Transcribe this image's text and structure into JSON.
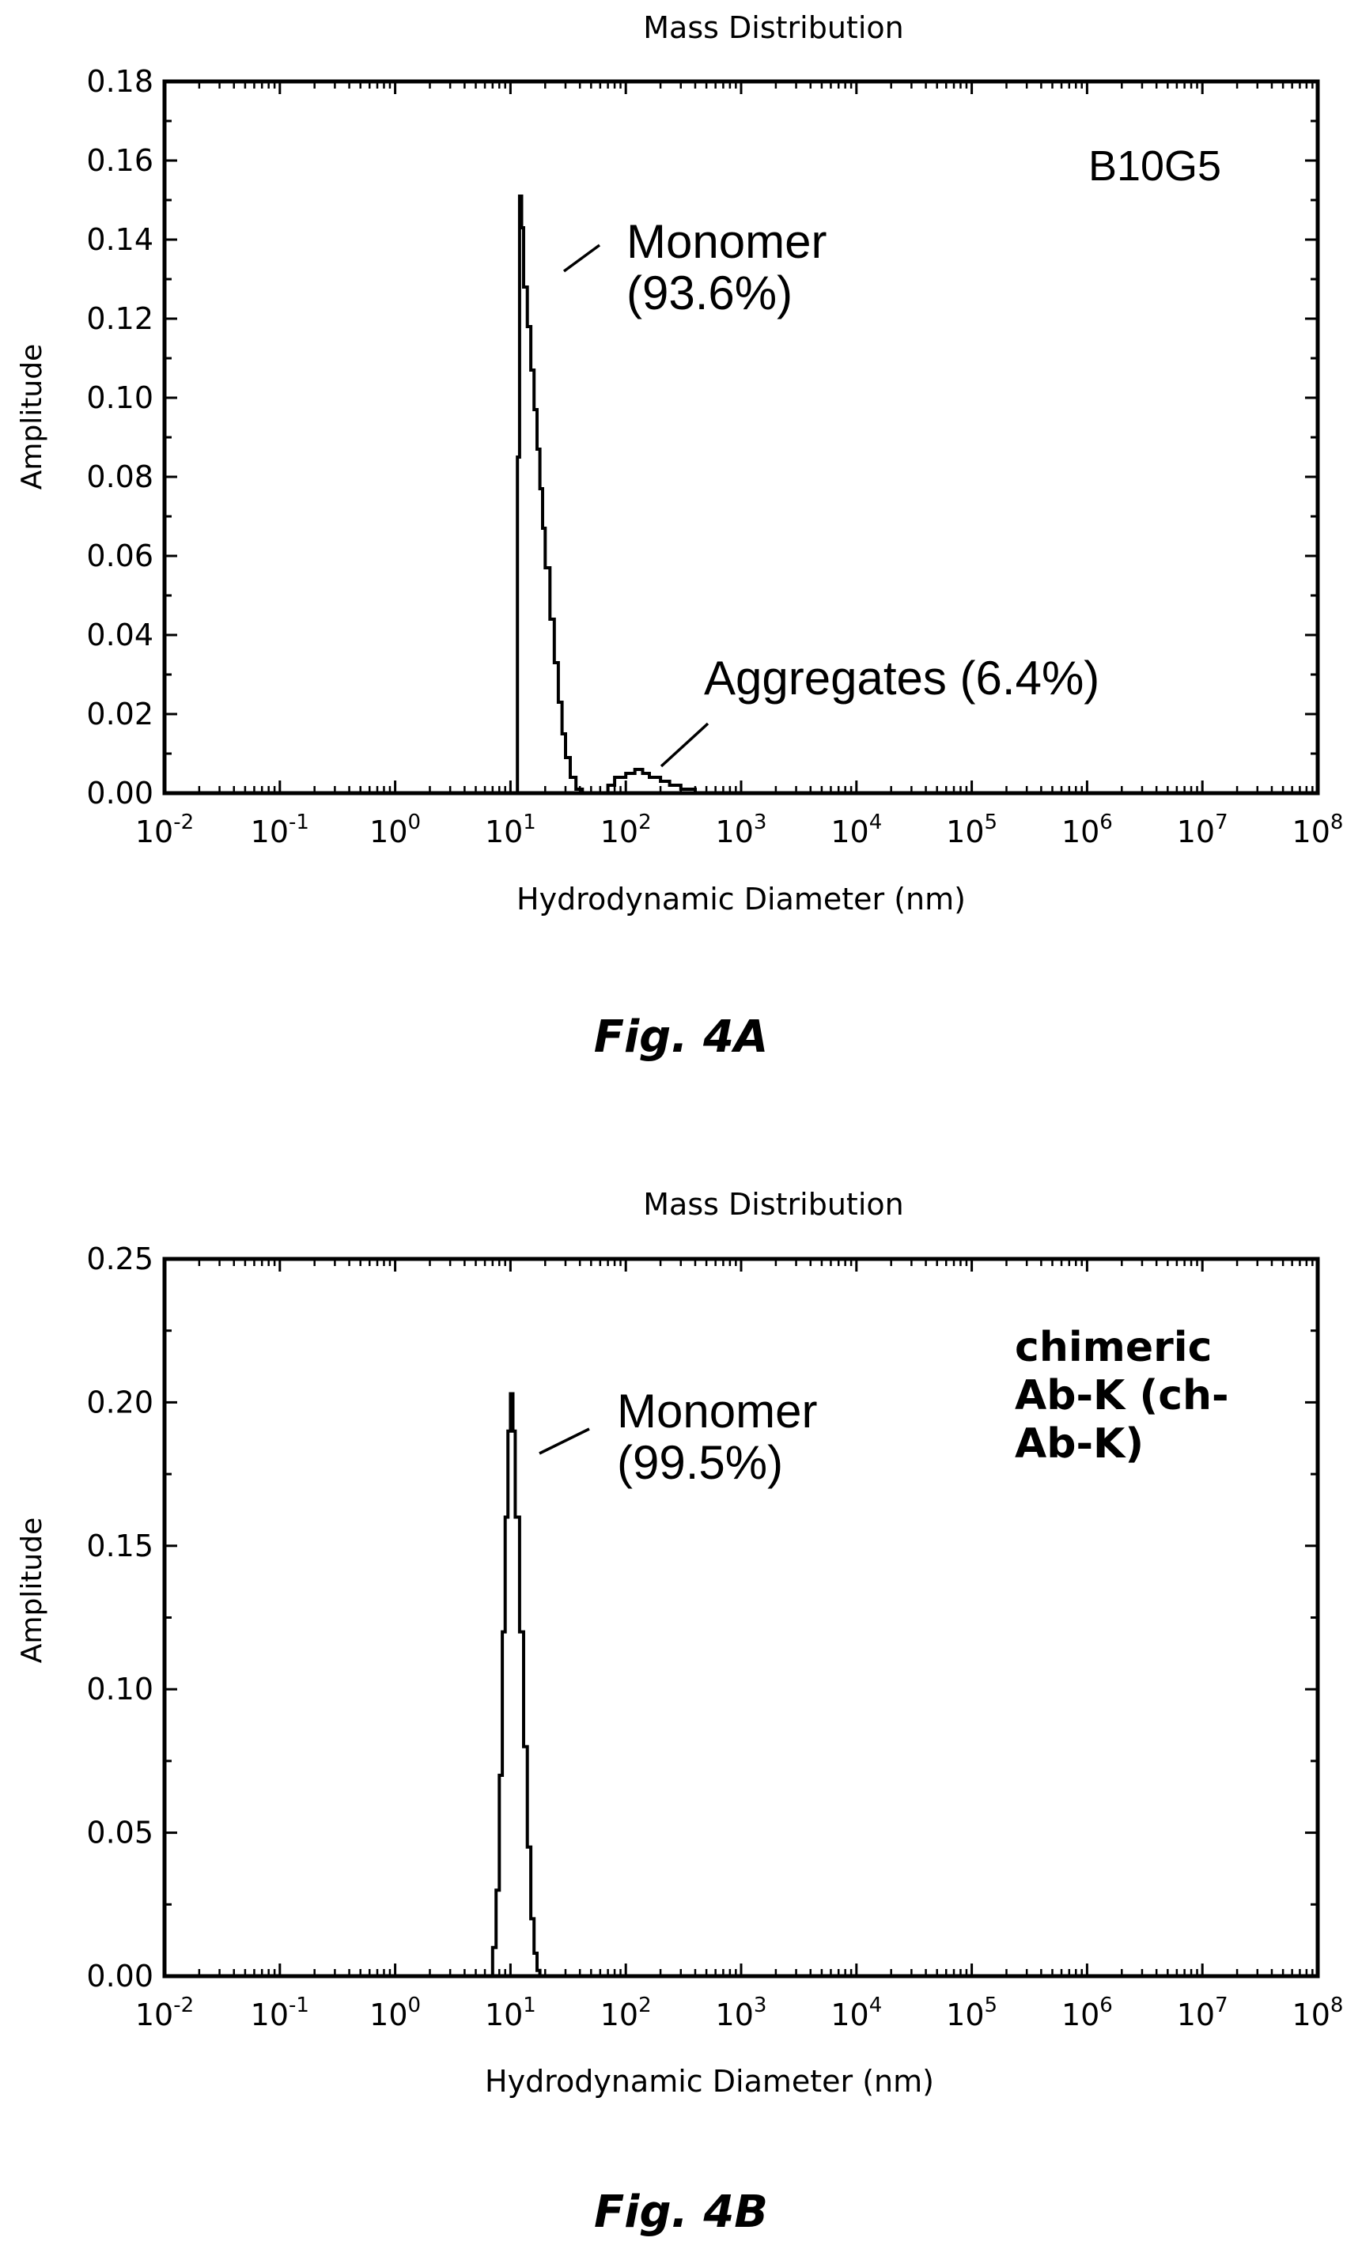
{
  "chart_data": [
    {
      "type": "line",
      "title": "Mass Distribution",
      "xlabel": "Hydrodynamic Diameter (nm)",
      "ylabel": "Amplitude",
      "x_scale": "log",
      "xlim": [
        0.01,
        100000000
      ],
      "ylim": [
        0,
        0.18
      ],
      "x_ticks": [
        {
          "base": "10",
          "exp": "-2"
        },
        {
          "base": "10",
          "exp": "-1"
        },
        {
          "base": "10",
          "exp": "0"
        },
        {
          "base": "10",
          "exp": "1"
        },
        {
          "base": "10",
          "exp": "2"
        },
        {
          "base": "10",
          "exp": "3"
        },
        {
          "base": "10",
          "exp": "4"
        },
        {
          "base": "10",
          "exp": "5"
        },
        {
          "base": "10",
          "exp": "6"
        },
        {
          "base": "10",
          "exp": "7"
        },
        {
          "base": "10",
          "exp": "8"
        }
      ],
      "y_ticks": [
        "0.00",
        "0.02",
        "0.04",
        "0.06",
        "0.08",
        "0.10",
        "0.12",
        "0.14",
        "0.16",
        "0.18"
      ],
      "y_tick_values": [
        0,
        0.02,
        0.04,
        0.06,
        0.08,
        0.1,
        0.12,
        0.14,
        0.16,
        0.18
      ],
      "sample_label": [
        "B10G5"
      ],
      "annotations": [
        {
          "lines": [
            "Monomer",
            "(93.6%)"
          ]
        },
        {
          "lines": [
            "Aggregates (6.4%)"
          ]
        }
      ],
      "series": [
        {
          "x": [
            0.01,
            11,
            11.5,
            12,
            12.5,
            13,
            14,
            15,
            16,
            17,
            18,
            19,
            20,
            22,
            24,
            26,
            28,
            30,
            33,
            37,
            42,
            50,
            60,
            70,
            80,
            100,
            120,
            140,
            160,
            200,
            240,
            300,
            400,
            100000000
          ],
          "y": [
            0,
            0,
            0.085,
            0.151,
            0.143,
            0.128,
            0.118,
            0.107,
            0.097,
            0.087,
            0.077,
            0.067,
            0.057,
            0.044,
            0.033,
            0.023,
            0.015,
            0.009,
            0.004,
            0.001,
            0,
            0,
            0,
            0.002,
            0.004,
            0.005,
            0.006,
            0.005,
            0.004,
            0.003,
            0.002,
            0.001,
            0,
            0
          ]
        }
      ]
    },
    {
      "type": "line",
      "title": "Mass Distribution",
      "xlabel": "Hydrodynamic Diameter (nm)",
      "ylabel": "Amplitude",
      "x_scale": "log",
      "xlim": [
        0.01,
        100000000
      ],
      "ylim": [
        0,
        0.25
      ],
      "x_ticks": [
        {
          "base": "10",
          "exp": "-2"
        },
        {
          "base": "10",
          "exp": "-1"
        },
        {
          "base": "10",
          "exp": "0"
        },
        {
          "base": "10",
          "exp": "1"
        },
        {
          "base": "10",
          "exp": "2"
        },
        {
          "base": "10",
          "exp": "3"
        },
        {
          "base": "10",
          "exp": "4"
        },
        {
          "base": "10",
          "exp": "5"
        },
        {
          "base": "10",
          "exp": "6"
        },
        {
          "base": "10",
          "exp": "7"
        },
        {
          "base": "10",
          "exp": "8"
        }
      ],
      "y_ticks": [
        "0.00",
        "0.05",
        "0.10",
        "0.15",
        "0.20",
        "0.25"
      ],
      "y_tick_values": [
        0,
        0.05,
        0.1,
        0.15,
        0.2,
        0.25
      ],
      "sample_label": [
        "chimeric",
        "Ab-K (ch-",
        "Ab-K)"
      ],
      "annotations": [
        {
          "lines": [
            "Monomer",
            "(99.5%)"
          ]
        }
      ],
      "series": [
        {
          "x": [
            0.02,
            6.5,
            7,
            7.5,
            8,
            8.5,
            9,
            9.5,
            10,
            10.5,
            11,
            12,
            13,
            14,
            15,
            16,
            17,
            18,
            10000000
          ],
          "y": [
            0,
            0,
            0.01,
            0.03,
            0.07,
            0.12,
            0.16,
            0.19,
            0.203,
            0.19,
            0.16,
            0.12,
            0.08,
            0.045,
            0.02,
            0.008,
            0.002,
            0,
            0
          ]
        }
      ]
    }
  ],
  "captions": [
    "Fig. 4A",
    "Fig. 4B"
  ]
}
